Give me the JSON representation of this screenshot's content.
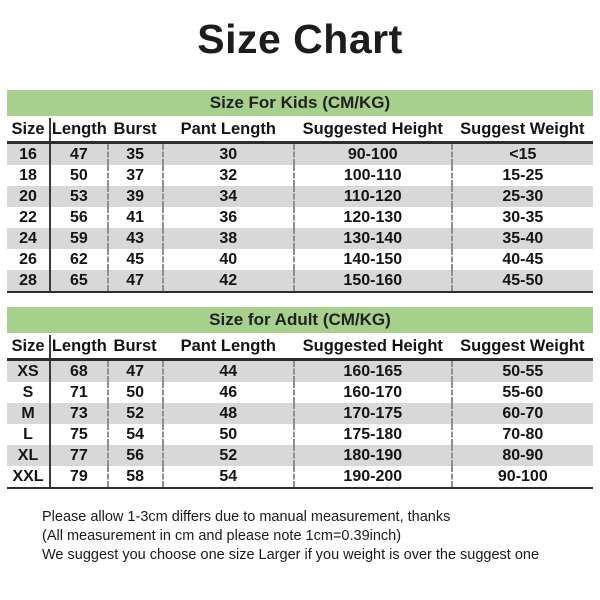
{
  "title": "Size Chart",
  "tables": [
    {
      "section_title": "Size For Kids (CM/KG)",
      "columns": [
        "Size",
        "Length",
        "Burst",
        "Pant Length",
        "Suggested Height",
        "Suggest Weight"
      ],
      "rows": [
        [
          "16",
          "47",
          "35",
          "30",
          "90-100",
          "<15"
        ],
        [
          "18",
          "50",
          "37",
          "32",
          "100-110",
          "15-25"
        ],
        [
          "20",
          "53",
          "39",
          "34",
          "110-120",
          "25-30"
        ],
        [
          "22",
          "56",
          "41",
          "36",
          "120-130",
          "30-35"
        ],
        [
          "24",
          "59",
          "43",
          "38",
          "130-140",
          "35-40"
        ],
        [
          "26",
          "62",
          "45",
          "40",
          "140-150",
          "40-45"
        ],
        [
          "28",
          "65",
          "47",
          "42",
          "150-160",
          "45-50"
        ]
      ]
    },
    {
      "section_title": "Size for Adult (CM/KG)",
      "columns": [
        "Size",
        "Length",
        "Burst",
        "Pant Length",
        "Suggested Height",
        "Suggest Weight"
      ],
      "rows": [
        [
          "XS",
          "68",
          "47",
          "44",
          "160-165",
          "50-55"
        ],
        [
          "S",
          "71",
          "50",
          "46",
          "160-170",
          "55-60"
        ],
        [
          "M",
          "73",
          "52",
          "48",
          "170-175",
          "60-70"
        ],
        [
          "L",
          "75",
          "54",
          "50",
          "175-180",
          "70-80"
        ],
        [
          "XL",
          "77",
          "56",
          "52",
          "180-190",
          "80-90"
        ],
        [
          "XXL",
          "79",
          "58",
          "54",
          "190-200",
          "90-100"
        ]
      ]
    }
  ],
  "notes": [
    "Please allow 1-3cm differs due to manual measurement, thanks",
    "(All measurement in cm and please note 1cm=0.39inch)",
    "We suggest you choose one size Larger if you weight is over the suggest one"
  ],
  "colors": {
    "section_header_bg": "#a6d08c",
    "alt_row_bg": "#d8d8d8",
    "text": "#1a1a1a",
    "background": "#ffffff"
  }
}
